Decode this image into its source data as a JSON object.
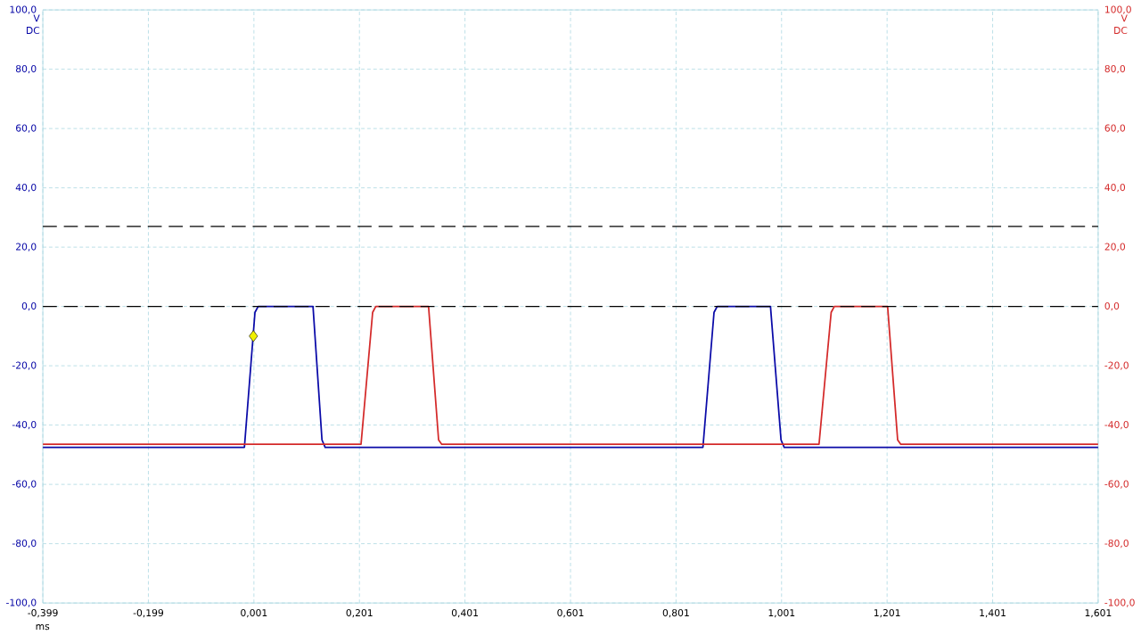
{
  "chart_data": {
    "type": "line",
    "xlabel": "ms",
    "ylabel": "V DC",
    "y2label": "V DC",
    "grid": true,
    "xlim": [
      -0.399,
      1.601
    ],
    "ylim": [
      -100,
      100
    ],
    "y2lim": [
      -100,
      100
    ],
    "xticks": [
      {
        "value": -0.399,
        "label": "-0,399"
      },
      {
        "value": -0.199,
        "label": "-0,199"
      },
      {
        "value": 0.001,
        "label": "0,001"
      },
      {
        "value": 0.201,
        "label": "0,201"
      },
      {
        "value": 0.401,
        "label": "0,401"
      },
      {
        "value": 0.601,
        "label": "0,601"
      },
      {
        "value": 0.801,
        "label": "0,801"
      },
      {
        "value": 1.001,
        "label": "1,001"
      },
      {
        "value": 1.201,
        "label": "1,201"
      },
      {
        "value": 1.401,
        "label": "1,401"
      },
      {
        "value": 1.601,
        "label": "1,601"
      }
    ],
    "yticks": [
      {
        "value": -100,
        "label": "-100,0"
      },
      {
        "value": -80,
        "label": "-80,0"
      },
      {
        "value": -60,
        "label": "-60,0"
      },
      {
        "value": -40,
        "label": "-40,0"
      },
      {
        "value": -20,
        "label": "-20,0"
      },
      {
        "value": 0,
        "label": "0,0"
      },
      {
        "value": 20,
        "label": "20,0"
      },
      {
        "value": 40,
        "label": "40,0"
      },
      {
        "value": 60,
        "label": "60,0"
      },
      {
        "value": 80,
        "label": "80,0"
      },
      {
        "value": 100,
        "label": "100,0"
      }
    ],
    "y2ticks": [
      {
        "value": -100,
        "label": "-100,0"
      },
      {
        "value": -80,
        "label": "-80,0"
      },
      {
        "value": -60,
        "label": "-60,0"
      },
      {
        "value": -40,
        "label": "-40,0"
      },
      {
        "value": -20,
        "label": "-20,0"
      },
      {
        "value": 0,
        "label": "0,0"
      },
      {
        "value": 20,
        "label": "20,0"
      },
      {
        "value": 40,
        "label": "40,0"
      },
      {
        "value": 60,
        "label": "60,0"
      },
      {
        "value": 80,
        "label": "80,0"
      },
      {
        "value": 100,
        "label": "100,0"
      }
    ],
    "series": [
      {
        "color": "#d42a2a",
        "axis": "y2",
        "x": [
          -0.399,
          0.204,
          0.226,
          0.232,
          0.332,
          0.351,
          0.357,
          1.072,
          1.095,
          1.101,
          1.202,
          1.221,
          1.227,
          1.601
        ],
        "values": [
          -46.5,
          -46.5,
          -2,
          0,
          0,
          -45,
          -46.5,
          -46.5,
          -2,
          0,
          0,
          -45,
          -46.5,
          -46.5
        ]
      },
      {
        "color": "#0a0aa8",
        "axis": "y",
        "x": [
          -0.399,
          -0.017,
          0.003,
          0.009,
          0.113,
          0.13,
          0.136,
          0.852,
          0.873,
          0.879,
          0.98,
          1.0,
          1.006,
          1.601
        ],
        "values": [
          -47.5,
          -47.5,
          -2,
          0,
          0,
          -45,
          -47.5,
          -47.5,
          -2,
          0,
          0,
          -45,
          -47.5,
          -47.5
        ]
      },
      {
        "type": "scatter",
        "marker": "diamond",
        "color": "#f0f000",
        "axis": "y",
        "x": [
          0.0
        ],
        "values": [
          -10
        ]
      }
    ],
    "ref_lines": [
      {
        "axis": "y2",
        "value": 27,
        "color": "#000000",
        "line_style": "dashed"
      },
      {
        "axis": "y2",
        "value": 0,
        "color": "#000000",
        "line_style": "dashed"
      }
    ]
  }
}
